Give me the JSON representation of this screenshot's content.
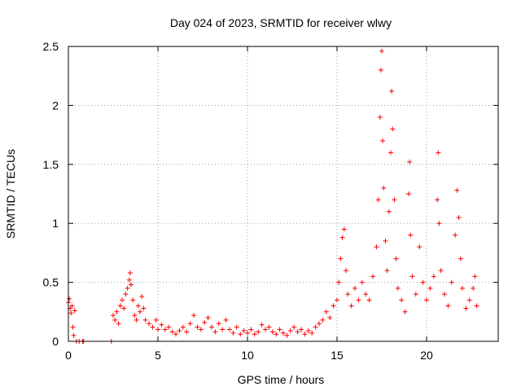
{
  "chart_data": {
    "type": "scatter",
    "title": "Day 024 of 2023, SRMTID for receiver wlwy",
    "xlabel": "GPS time / hours",
    "ylabel": "SRMTID / TECUs",
    "xlim": [
      0,
      24
    ],
    "ylim": [
      0,
      2.5
    ],
    "x_ticks": [
      0,
      5,
      10,
      15,
      20
    ],
    "x_tick_labels": [
      "0",
      "5",
      "10",
      "15",
      "20"
    ],
    "y_ticks": [
      0,
      0.5,
      1,
      1.5,
      2,
      2.5
    ],
    "y_tick_labels": [
      "0",
      "0.5",
      "1",
      "1.5",
      "2",
      "2.5"
    ],
    "grid": true,
    "marker": "+",
    "series": [
      {
        "name": "SRMTID",
        "color": "#ff0000",
        "points": [
          [
            0.0,
            0.33
          ],
          [
            0.05,
            0.36
          ],
          [
            0.1,
            0.28
          ],
          [
            0.15,
            0.24
          ],
          [
            0.2,
            0.3
          ],
          [
            0.25,
            0.12
          ],
          [
            0.3,
            0.05
          ],
          [
            0.35,
            0.26
          ],
          [
            0.45,
            0.0
          ],
          [
            0.6,
            0.0
          ],
          [
            0.8,
            0.0
          ],
          [
            0.85,
            0.0
          ],
          [
            2.4,
            0.0
          ],
          [
            2.5,
            0.22
          ],
          [
            2.6,
            0.18
          ],
          [
            2.7,
            0.25
          ],
          [
            2.8,
            0.15
          ],
          [
            2.9,
            0.3
          ],
          [
            3.0,
            0.35
          ],
          [
            3.1,
            0.28
          ],
          [
            3.2,
            0.4
          ],
          [
            3.3,
            0.45
          ],
          [
            3.4,
            0.52
          ],
          [
            3.45,
            0.58
          ],
          [
            3.5,
            0.48
          ],
          [
            3.6,
            0.35
          ],
          [
            3.7,
            0.22
          ],
          [
            3.8,
            0.18
          ],
          [
            3.9,
            0.3
          ],
          [
            4.0,
            0.25
          ],
          [
            4.1,
            0.38
          ],
          [
            4.2,
            0.28
          ],
          [
            4.3,
            0.18
          ],
          [
            4.5,
            0.15
          ],
          [
            4.7,
            0.12
          ],
          [
            4.9,
            0.18
          ],
          [
            5.0,
            0.1
          ],
          [
            5.2,
            0.14
          ],
          [
            5.4,
            0.1
          ],
          [
            5.6,
            0.12
          ],
          [
            5.8,
            0.08
          ],
          [
            6.0,
            0.06
          ],
          [
            6.2,
            0.09
          ],
          [
            6.4,
            0.12
          ],
          [
            6.6,
            0.08
          ],
          [
            6.8,
            0.15
          ],
          [
            7.0,
            0.22
          ],
          [
            7.2,
            0.12
          ],
          [
            7.4,
            0.1
          ],
          [
            7.6,
            0.16
          ],
          [
            7.8,
            0.2
          ],
          [
            8.0,
            0.12
          ],
          [
            8.2,
            0.08
          ],
          [
            8.4,
            0.15
          ],
          [
            8.6,
            0.1
          ],
          [
            8.8,
            0.18
          ],
          [
            9.0,
            0.1
          ],
          [
            9.2,
            0.07
          ],
          [
            9.4,
            0.12
          ],
          [
            9.6,
            0.06
          ],
          [
            9.8,
            0.09
          ],
          [
            10.0,
            0.07
          ],
          [
            10.2,
            0.1
          ],
          [
            10.4,
            0.06
          ],
          [
            10.6,
            0.08
          ],
          [
            10.8,
            0.14
          ],
          [
            11.0,
            0.1
          ],
          [
            11.2,
            0.12
          ],
          [
            11.4,
            0.08
          ],
          [
            11.6,
            0.06
          ],
          [
            11.8,
            0.1
          ],
          [
            12.0,
            0.07
          ],
          [
            12.2,
            0.05
          ],
          [
            12.4,
            0.09
          ],
          [
            12.6,
            0.12
          ],
          [
            12.8,
            0.08
          ],
          [
            13.0,
            0.1
          ],
          [
            13.2,
            0.06
          ],
          [
            13.4,
            0.09
          ],
          [
            13.6,
            0.07
          ],
          [
            13.8,
            0.12
          ],
          [
            14.0,
            0.15
          ],
          [
            14.2,
            0.18
          ],
          [
            14.4,
            0.25
          ],
          [
            14.6,
            0.2
          ],
          [
            14.8,
            0.3
          ],
          [
            15.0,
            0.35
          ],
          [
            15.1,
            0.5
          ],
          [
            15.2,
            0.7
          ],
          [
            15.3,
            0.88
          ],
          [
            15.4,
            0.95
          ],
          [
            15.5,
            0.6
          ],
          [
            15.6,
            0.4
          ],
          [
            15.8,
            0.3
          ],
          [
            16.0,
            0.45
          ],
          [
            16.2,
            0.35
          ],
          [
            16.4,
            0.5
          ],
          [
            16.6,
            0.4
          ],
          [
            16.8,
            0.35
          ],
          [
            17.0,
            0.55
          ],
          [
            17.2,
            0.8
          ],
          [
            17.3,
            1.2
          ],
          [
            17.4,
            1.9
          ],
          [
            17.45,
            2.3
          ],
          [
            17.5,
            2.46
          ],
          [
            17.55,
            1.7
          ],
          [
            17.6,
            1.3
          ],
          [
            17.7,
            0.85
          ],
          [
            17.8,
            0.6
          ],
          [
            17.9,
            1.1
          ],
          [
            18.0,
            1.6
          ],
          [
            18.05,
            2.12
          ],
          [
            18.1,
            1.8
          ],
          [
            18.2,
            1.2
          ],
          [
            18.3,
            0.7
          ],
          [
            18.4,
            0.45
          ],
          [
            18.6,
            0.35
          ],
          [
            18.8,
            0.25
          ],
          [
            19.0,
            1.25
          ],
          [
            19.05,
            1.52
          ],
          [
            19.1,
            0.9
          ],
          [
            19.2,
            0.55
          ],
          [
            19.4,
            0.4
          ],
          [
            19.6,
            0.8
          ],
          [
            19.8,
            0.5
          ],
          [
            20.0,
            0.35
          ],
          [
            20.2,
            0.45
          ],
          [
            20.4,
            0.55
          ],
          [
            20.6,
            1.2
          ],
          [
            20.65,
            1.6
          ],
          [
            20.7,
            1.0
          ],
          [
            20.8,
            0.6
          ],
          [
            21.0,
            0.4
          ],
          [
            21.2,
            0.3
          ],
          [
            21.4,
            0.5
          ],
          [
            21.6,
            0.9
          ],
          [
            21.7,
            1.28
          ],
          [
            21.8,
            1.05
          ],
          [
            21.9,
            0.7
          ],
          [
            22.0,
            0.45
          ],
          [
            22.2,
            0.28
          ],
          [
            22.4,
            0.35
          ],
          [
            22.6,
            0.45
          ],
          [
            22.7,
            0.55
          ],
          [
            22.8,
            0.3
          ]
        ]
      }
    ]
  }
}
